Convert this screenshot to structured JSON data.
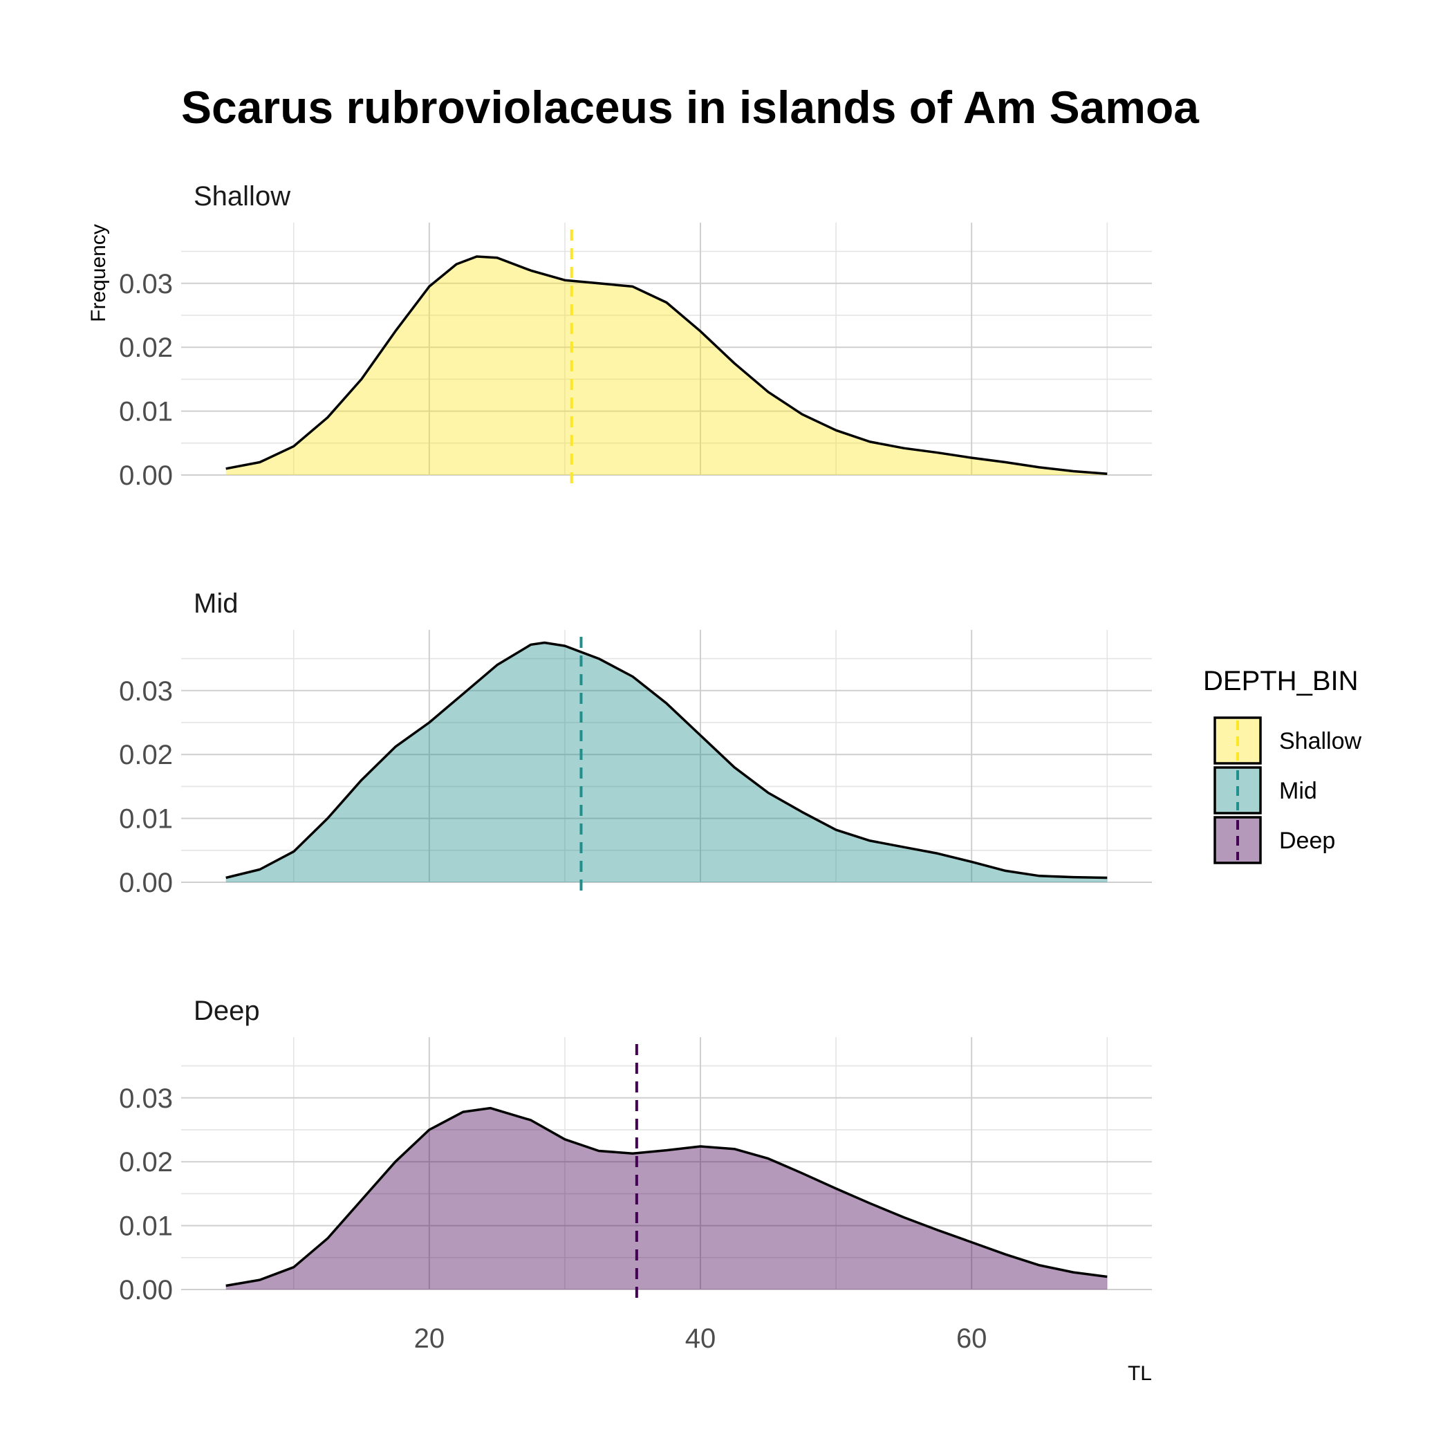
{
  "chart_data": {
    "type": "area",
    "title": "Scarus rubroviolaceus in islands of Am Samoa",
    "xlabel": "TL",
    "ylabel": "Frequency",
    "xlim": [
      1.7,
      73.3
    ],
    "ylim": [
      0,
      0.0395
    ],
    "x_ticks": [
      20,
      40,
      60
    ],
    "y_ticks": [
      0.0,
      0.01,
      0.02,
      0.03
    ],
    "y_tick_labels": [
      "0.00",
      "0.01",
      "0.02",
      "0.03"
    ],
    "grid": true,
    "legend": {
      "title": "DEPTH_BIN",
      "position": "right",
      "entries": [
        "Shallow",
        "Mid",
        "Deep"
      ]
    },
    "panels": [
      {
        "name": "Shallow",
        "fill": "#FDE725",
        "line": "#FDE725",
        "mean": 30.5,
        "points": [
          [
            5.0,
            0.001
          ],
          [
            7.5,
            0.002
          ],
          [
            10.0,
            0.0045
          ],
          [
            12.5,
            0.009
          ],
          [
            15.0,
            0.015
          ],
          [
            17.5,
            0.0225
          ],
          [
            20.0,
            0.0295
          ],
          [
            22.0,
            0.033
          ],
          [
            23.5,
            0.0342
          ],
          [
            25.0,
            0.034
          ],
          [
            27.5,
            0.032
          ],
          [
            30.0,
            0.0305
          ],
          [
            32.5,
            0.03
          ],
          [
            35.0,
            0.0295
          ],
          [
            37.5,
            0.027
          ],
          [
            40.0,
            0.0225
          ],
          [
            42.5,
            0.0175
          ],
          [
            45.0,
            0.013
          ],
          [
            47.5,
            0.0095
          ],
          [
            50.0,
            0.007
          ],
          [
            52.5,
            0.0052
          ],
          [
            55.0,
            0.0042
          ],
          [
            57.5,
            0.0035
          ],
          [
            60.0,
            0.0027
          ],
          [
            62.5,
            0.002
          ],
          [
            65.0,
            0.0012
          ],
          [
            67.5,
            0.0006
          ],
          [
            70.0,
            0.0002
          ]
        ]
      },
      {
        "name": "Mid",
        "fill": "#21908C",
        "line": "#21908C",
        "mean": 31.2,
        "points": [
          [
            5.0,
            0.0007
          ],
          [
            7.5,
            0.002
          ],
          [
            10.0,
            0.0048
          ],
          [
            12.5,
            0.01
          ],
          [
            15.0,
            0.016
          ],
          [
            17.5,
            0.0212
          ],
          [
            20.0,
            0.025
          ],
          [
            22.5,
            0.0295
          ],
          [
            25.0,
            0.034
          ],
          [
            27.5,
            0.0372
          ],
          [
            28.5,
            0.0375
          ],
          [
            30.0,
            0.037
          ],
          [
            32.5,
            0.035
          ],
          [
            35.0,
            0.0322
          ],
          [
            37.5,
            0.028
          ],
          [
            40.0,
            0.023
          ],
          [
            42.5,
            0.018
          ],
          [
            45.0,
            0.014
          ],
          [
            47.5,
            0.011
          ],
          [
            50.0,
            0.0082
          ],
          [
            52.5,
            0.0065
          ],
          [
            55.0,
            0.0055
          ],
          [
            57.5,
            0.0045
          ],
          [
            60.0,
            0.0032
          ],
          [
            62.5,
            0.0018
          ],
          [
            65.0,
            0.001
          ],
          [
            67.5,
            0.0008
          ],
          [
            70.0,
            0.0007
          ]
        ]
      },
      {
        "name": "Deep",
        "fill": "#440154",
        "line": "#440154",
        "mean": 35.3,
        "points": [
          [
            5.0,
            0.0006
          ],
          [
            7.5,
            0.0015
          ],
          [
            10.0,
            0.0035
          ],
          [
            12.5,
            0.008
          ],
          [
            15.0,
            0.014
          ],
          [
            17.5,
            0.02
          ],
          [
            20.0,
            0.025
          ],
          [
            22.5,
            0.0278
          ],
          [
            24.5,
            0.0284
          ],
          [
            27.5,
            0.0265
          ],
          [
            30.0,
            0.0235
          ],
          [
            32.5,
            0.0217
          ],
          [
            35.0,
            0.0213
          ],
          [
            37.5,
            0.0218
          ],
          [
            40.0,
            0.0224
          ],
          [
            42.5,
            0.022
          ],
          [
            45.0,
            0.0205
          ],
          [
            47.5,
            0.0182
          ],
          [
            50.0,
            0.0158
          ],
          [
            52.5,
            0.0135
          ],
          [
            55.0,
            0.0113
          ],
          [
            57.5,
            0.0093
          ],
          [
            60.0,
            0.0074
          ],
          [
            62.5,
            0.0055
          ],
          [
            65.0,
            0.0038
          ],
          [
            67.5,
            0.0027
          ],
          [
            70.0,
            0.002
          ]
        ]
      }
    ]
  }
}
